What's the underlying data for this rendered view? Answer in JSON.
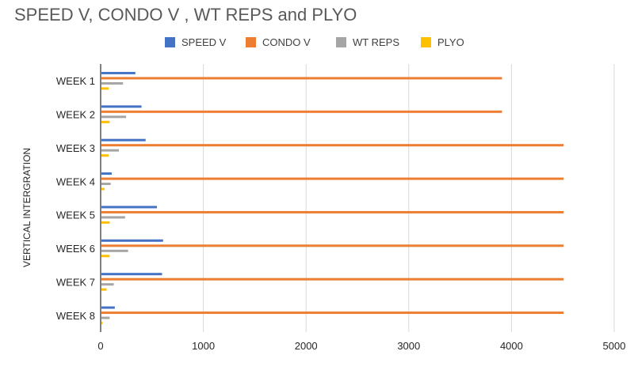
{
  "chart_data": {
    "type": "bar",
    "orientation": "horizontal",
    "title": "SPEED V, CONDO V , WT REPS  and PLYO",
    "xlabel": "",
    "ylabel": "VERTICAL INTERGRATION",
    "categories": [
      "WEEK 1",
      "WEEK 2",
      "WEEK 3",
      "WEEK 4",
      "WEEK 5",
      "WEEK 6",
      "WEEK 7",
      "WEEK 8"
    ],
    "series": [
      {
        "name": "SPEED V",
        "color": "#4472C4",
        "values": [
          330,
          390,
          430,
          100,
          540,
          600,
          590,
          130
        ]
      },
      {
        "name": "CONDO V",
        "color": "#ED7D31",
        "values": [
          3900,
          3900,
          4500,
          4500,
          4500,
          4500,
          4500,
          4500
        ]
      },
      {
        "name": "WT REPS",
        "color": "#A5A5A5",
        "values": [
          210,
          240,
          170,
          90,
          230,
          260,
          120,
          80
        ]
      },
      {
        "name": "PLYO",
        "color": "#FFC000",
        "values": [
          70,
          80,
          70,
          30,
          80,
          80,
          50,
          10
        ]
      }
    ],
    "xlim": [
      0,
      5000
    ],
    "xticks": [
      0,
      1000,
      2000,
      3000,
      4000,
      5000
    ],
    "grid": true,
    "legend_position": "top"
  }
}
